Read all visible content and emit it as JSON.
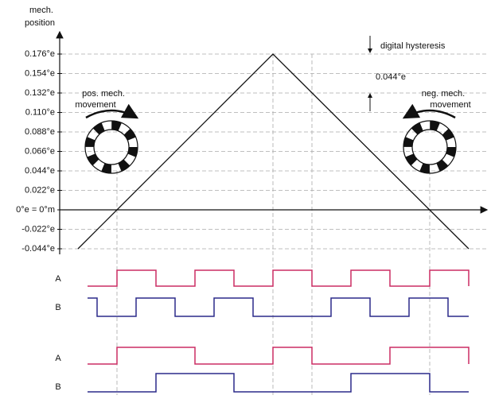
{
  "y_axis": {
    "label_lines": [
      "mech.",
      "position"
    ],
    "ticks": [
      "0.176°e",
      "0.154°e",
      "0.132°e",
      "0.110°e",
      "0.088°e",
      "0.066°e",
      "0.044°e",
      "0.022°e",
      "0°e = 0°m",
      "-0.022°e",
      "-0.044°e"
    ]
  },
  "annotations": {
    "hysteresis": "digital hysteresis",
    "hysteresis_value": "0.044°e",
    "pos_movement": [
      "pos. mech.",
      "movement"
    ],
    "neg_movement": [
      "neg. mech.",
      "movement"
    ]
  },
  "signals": [
    "A",
    "B",
    "A",
    "B"
  ]
}
